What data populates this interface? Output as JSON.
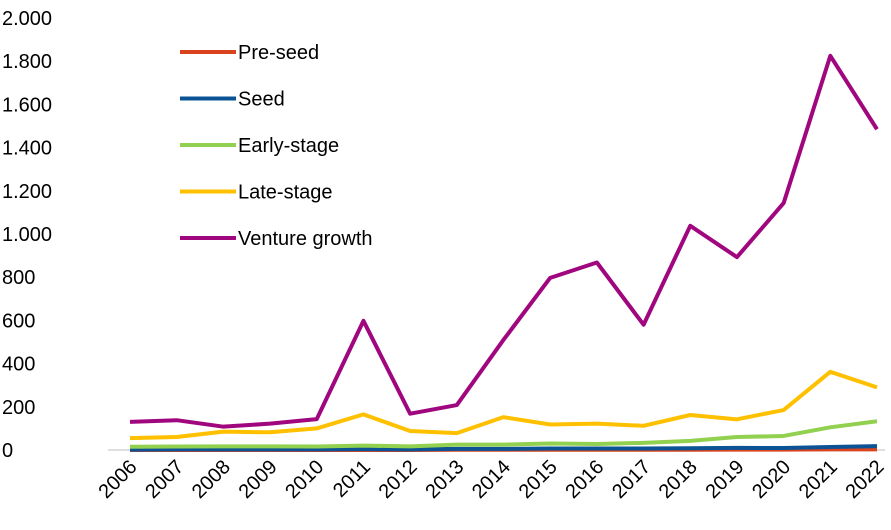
{
  "chart_data": {
    "type": "line",
    "categories": [
      "2006",
      "2007",
      "2008",
      "2009",
      "2010",
      "2011",
      "2012",
      "2013",
      "2014",
      "2015",
      "2016",
      "2017",
      "2018",
      "2019",
      "2020",
      "2021",
      "2022"
    ],
    "series": [
      {
        "name": "Pre-seed",
        "color": "#d9431e",
        "values": [
          0,
          0,
          0,
          0,
          0,
          0,
          0,
          1,
          1,
          1,
          1,
          1,
          1,
          2,
          2,
          3,
          3
        ]
      },
      {
        "name": "Seed",
        "color": "#0b5394",
        "values": [
          2,
          3,
          3,
          3,
          3,
          4,
          3,
          5,
          5,
          7,
          7,
          7,
          8,
          10,
          9,
          14,
          18
        ]
      },
      {
        "name": "Early-stage",
        "color": "#92d050",
        "values": [
          15,
          16,
          17,
          17,
          16,
          20,
          17,
          25,
          25,
          30,
          28,
          33,
          42,
          60,
          65,
          105,
          133
        ]
      },
      {
        "name": "Late-stage",
        "color": "#ffc000",
        "values": [
          55,
          60,
          85,
          82,
          100,
          165,
          88,
          78,
          152,
          118,
          122,
          112,
          162,
          142,
          185,
          362,
          290
        ]
      },
      {
        "name": "Venture growth",
        "color": "#a0067e",
        "values": [
          130,
          138,
          108,
          122,
          143,
          598,
          168,
          208,
          510,
          797,
          868,
          580,
          1038,
          893,
          1143,
          1825,
          1485
        ]
      }
    ],
    "ylim": [
      0,
      2000
    ],
    "yticks": [
      0,
      200,
      400,
      600,
      800,
      {
        "value": 1000,
        "label": "1.000"
      },
      {
        "value": 1200,
        "label": "1.200"
      },
      {
        "value": 1400,
        "label": "1.400"
      },
      {
        "value": 1600,
        "label": "1.600"
      },
      {
        "value": 1800,
        "label": "1.800"
      },
      {
        "value": 2000,
        "label": "2.000"
      }
    ],
    "grid": false,
    "legend": "upper left"
  }
}
